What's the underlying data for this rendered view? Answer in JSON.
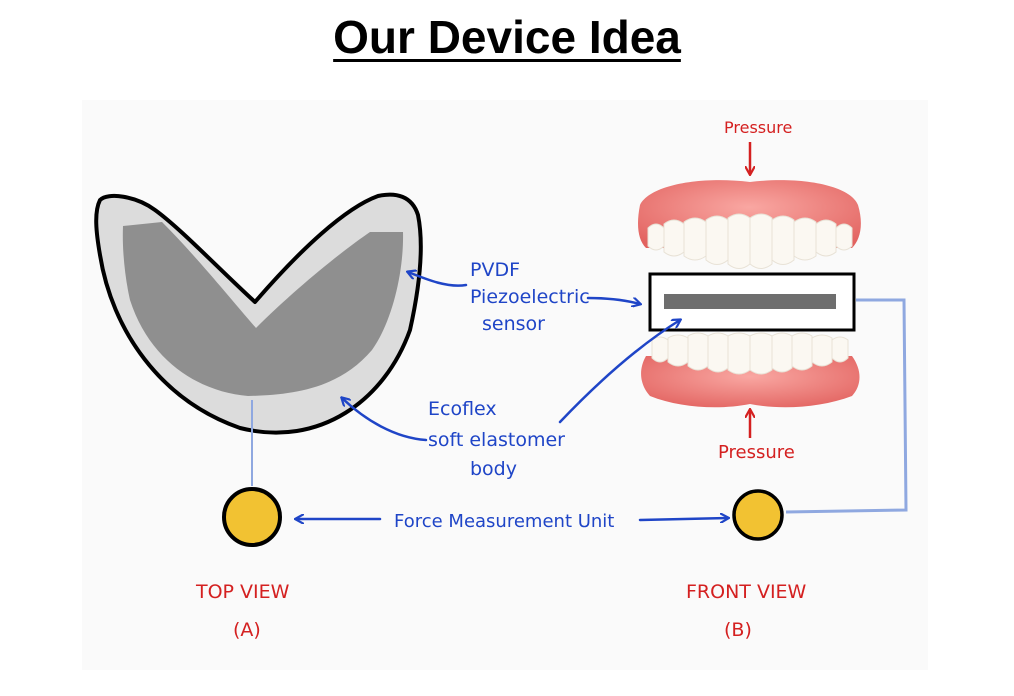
{
  "title": "Our Device Idea",
  "labels": {
    "pvdf_1": "PVDF",
    "pvdf_2": "Piezoelectric",
    "pvdf_3": "sensor",
    "ecoflex_1": "Ecoflex",
    "ecoflex_2": "soft elastomer",
    "ecoflex_3": "body",
    "force_unit": "Force Measurement Unit",
    "pressure_top": "Pressure",
    "pressure_bottom": "Pressure",
    "top_view": "TOP VIEW",
    "top_view_letter": "(A)",
    "front_view": "FRONT VIEW",
    "front_view_letter": "(B)"
  },
  "colors": {
    "annotation_blue": "#1f45c7",
    "pressure_red": "#d42020",
    "coin_yellow": "#f2c232",
    "elastomer_light": "#dcdcdc",
    "sensor_dark": "#8f8f8f",
    "gum_pink": "#f07b78"
  }
}
